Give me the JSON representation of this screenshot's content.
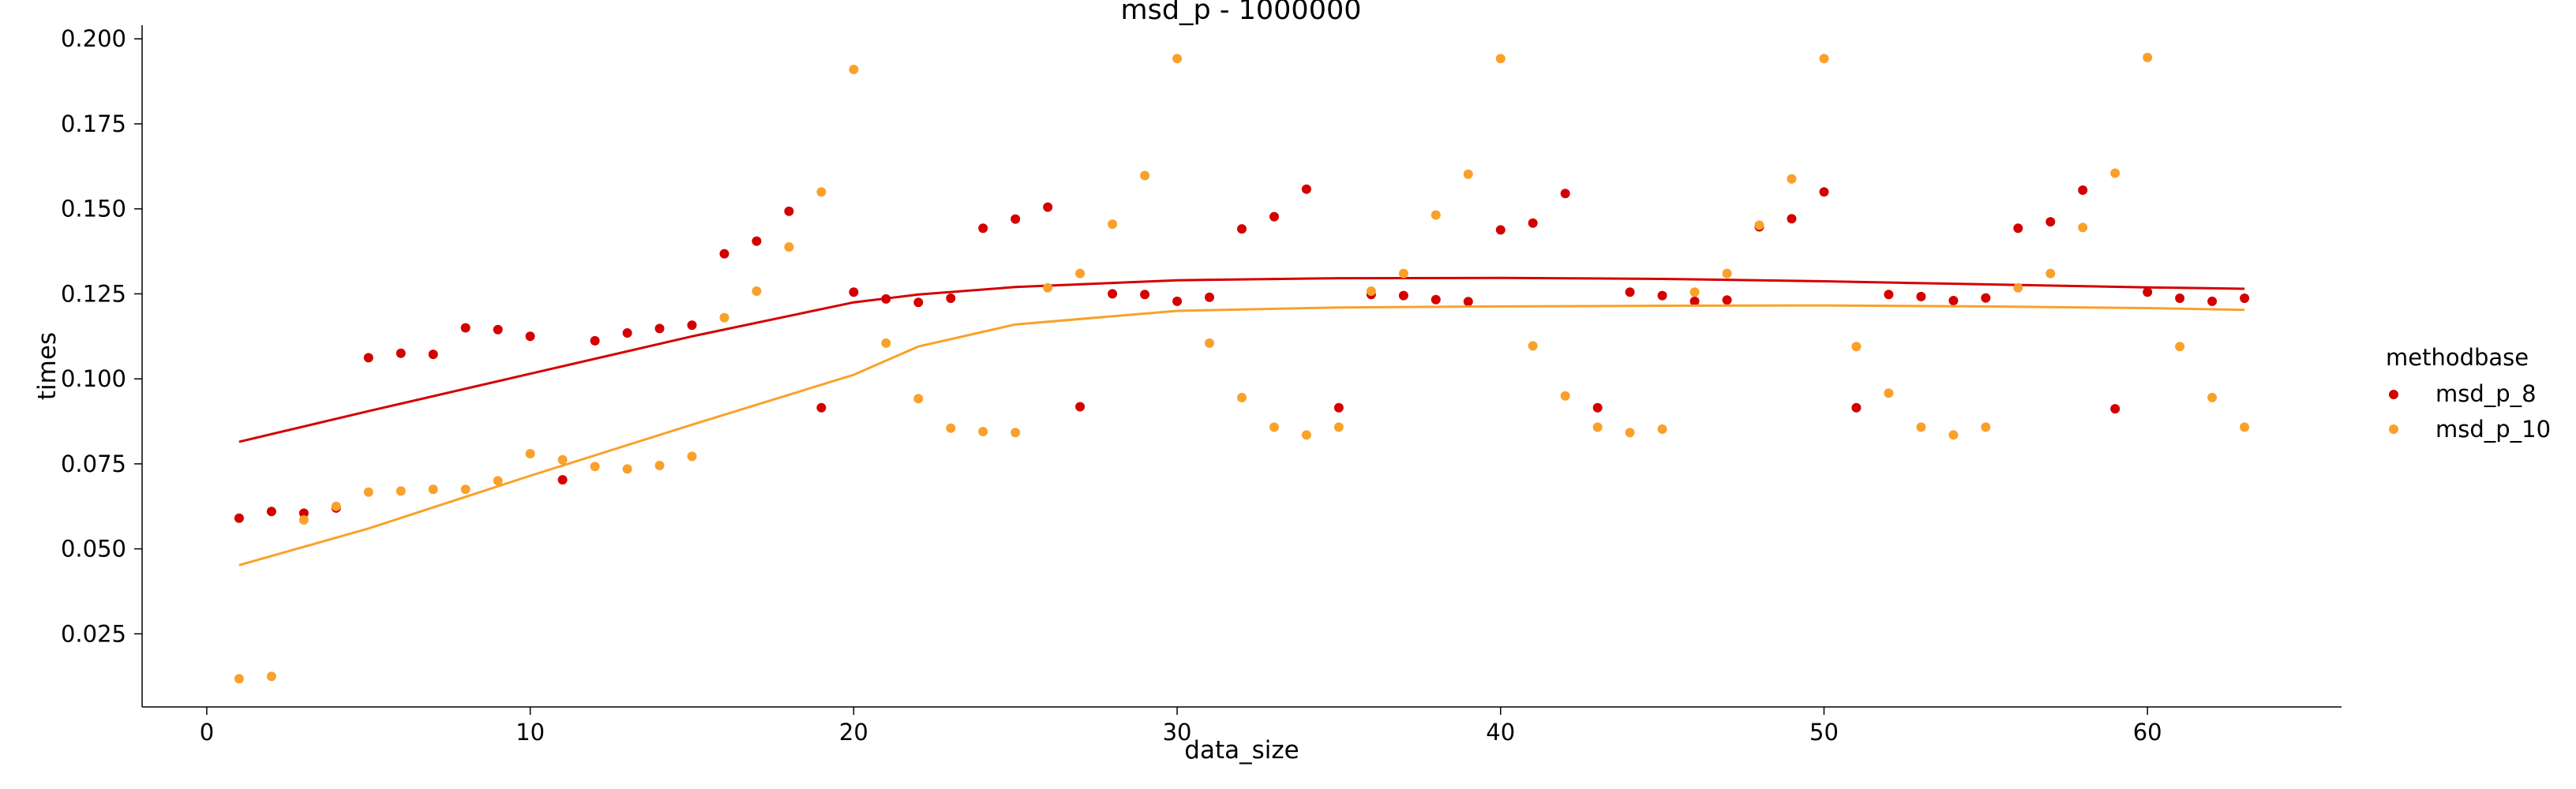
{
  "chart_data": {
    "type": "scatter",
    "title": "msd_p - 1000000",
    "xlabel": "data_size",
    "ylabel": "times",
    "xlim": [
      -2,
      66
    ],
    "ylim": [
      0.0035,
      0.204
    ],
    "xticks": [
      0,
      10,
      20,
      30,
      40,
      50,
      60
    ],
    "yticks": [
      0.025,
      0.05,
      0.075,
      0.1,
      0.125,
      0.15,
      0.175,
      0.2
    ],
    "xtick_labels": [
      "0",
      "10",
      "20",
      "30",
      "40",
      "50",
      "60"
    ],
    "ytick_labels": [
      "0.025",
      "0.050",
      "0.075",
      "0.100",
      "0.125",
      "0.150",
      "0.175",
      "0.200"
    ],
    "grid": false,
    "legend": {
      "title": "methodbase",
      "placement": "right"
    },
    "series": [
      {
        "name": "msd_p_8",
        "color": "#d40000",
        "x": [
          1,
          2,
          3,
          4,
          5,
          6,
          7,
          8,
          9,
          10,
          11,
          12,
          13,
          14,
          15,
          16,
          17,
          18,
          19,
          20,
          21,
          22,
          23,
          24,
          25,
          26,
          27,
          28,
          29,
          30,
          31,
          32,
          33,
          34,
          35,
          36,
          37,
          38,
          39,
          40,
          41,
          42,
          43,
          44,
          45,
          46,
          47,
          48,
          49,
          50,
          51,
          52,
          53,
          54,
          55,
          56,
          57,
          58,
          59,
          60,
          61,
          62,
          63
        ],
        "y": [
          0.059,
          0.061,
          0.0605,
          0.062,
          0.1062,
          0.1075,
          0.1072,
          0.115,
          0.1145,
          0.1125,
          0.0703,
          0.1112,
          0.1135,
          0.1148,
          0.1158,
          0.1368,
          0.1405,
          0.1493,
          0.0915,
          0.1255,
          0.1235,
          0.1225,
          0.1237,
          0.1443,
          0.147,
          0.1505,
          0.0918,
          0.125,
          0.1248,
          0.1228,
          0.124,
          0.1441,
          0.1477,
          0.1558,
          0.0915,
          0.1248,
          0.1245,
          0.1233,
          0.1227,
          0.1438,
          0.1458,
          0.1545,
          0.0915,
          0.1255,
          0.1245,
          0.1228,
          0.1232,
          0.1447,
          0.1471,
          0.155,
          0.0915,
          0.1248,
          0.1242,
          0.123,
          0.1238,
          0.1443,
          0.1462,
          0.1555,
          0.0912,
          0.1255,
          0.1237,
          0.1228,
          0.1237
        ],
        "trend": {
          "x": [
            1,
            5,
            10,
            15,
            20,
            22,
            25,
            30,
            35,
            40,
            45,
            50,
            55,
            60,
            63
          ],
          "y": [
            0.0815,
            0.0905,
            0.1015,
            0.1125,
            0.1225,
            0.1248,
            0.127,
            0.129,
            0.1296,
            0.1297,
            0.1294,
            0.1287,
            0.1278,
            0.1269,
            0.1265
          ]
        }
      },
      {
        "name": "msd_p_10",
        "color": "#f9a12b",
        "x": [
          1,
          2,
          3,
          4,
          5,
          6,
          7,
          8,
          9,
          10,
          11,
          12,
          13,
          14,
          15,
          16,
          17,
          18,
          19,
          20,
          21,
          22,
          23,
          24,
          25,
          26,
          27,
          28,
          29,
          30,
          31,
          32,
          33,
          34,
          35,
          36,
          37,
          38,
          39,
          40,
          41,
          42,
          43,
          44,
          45,
          46,
          47,
          48,
          49,
          50,
          51,
          52,
          53,
          54,
          55,
          56,
          57,
          58,
          59,
          60,
          61,
          62,
          63
        ],
        "y": [
          0.0118,
          0.0125,
          0.0585,
          0.0625,
          0.0667,
          0.067,
          0.0675,
          0.0675,
          0.07,
          0.078,
          0.0762,
          0.0742,
          0.0735,
          0.0745,
          0.0772,
          0.118,
          0.1258,
          0.1388,
          0.155,
          0.191,
          0.1105,
          0.0942,
          0.0855,
          0.0845,
          0.0842,
          0.1268,
          0.131,
          0.1455,
          0.1598,
          0.1942,
          0.1105,
          0.0945,
          0.0858,
          0.0835,
          0.0858,
          0.1258,
          0.131,
          0.1482,
          0.1602,
          0.1942,
          0.1097,
          0.095,
          0.0858,
          0.0842,
          0.0852,
          0.1255,
          0.131,
          0.1452,
          0.1588,
          0.1942,
          0.1095,
          0.0958,
          0.0858,
          0.0835,
          0.0858,
          0.1268,
          0.131,
          0.1445,
          0.1605,
          0.1945,
          0.1095,
          0.0945,
          0.0858
        ],
        "trend": {
          "x": [
            1,
            5,
            10,
            15,
            20,
            22,
            25,
            30,
            35,
            40,
            45,
            50,
            55,
            60,
            63
          ],
          "y": [
            0.0452,
            0.056,
            0.0715,
            0.0865,
            0.1012,
            0.1095,
            0.116,
            0.12,
            0.121,
            0.1213,
            0.1215,
            0.1216,
            0.1213,
            0.1208,
            0.1203
          ]
        }
      }
    ]
  }
}
